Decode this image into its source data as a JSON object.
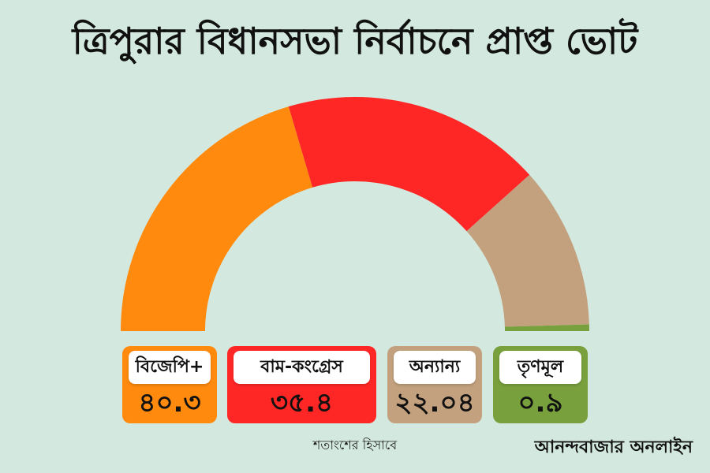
{
  "title": "ত্রিপুরার বিধানসভা নির্বাচনে প্রাপ্ত ভোট",
  "note": "শতাংশের হিসাবে",
  "brand": "আনন্দবাজার অনলাইন",
  "chart_data": {
    "type": "pie",
    "subtype": "semi-donut",
    "unit": "percent",
    "categories": [
      "বিজেপি+",
      "বাম-কংগ্রেস",
      "অন্যান্য",
      "তৃণমূল"
    ],
    "values": [
      40.3,
      35.4,
      22.04,
      0.9
    ],
    "value_labels": [
      "৪০.৩",
      "৩৫.৪",
      "২২.০৪",
      "০.৯"
    ],
    "colors": [
      "#ff8a0e",
      "#fe2726",
      "#c3a17e",
      "#78a03c"
    ]
  }
}
